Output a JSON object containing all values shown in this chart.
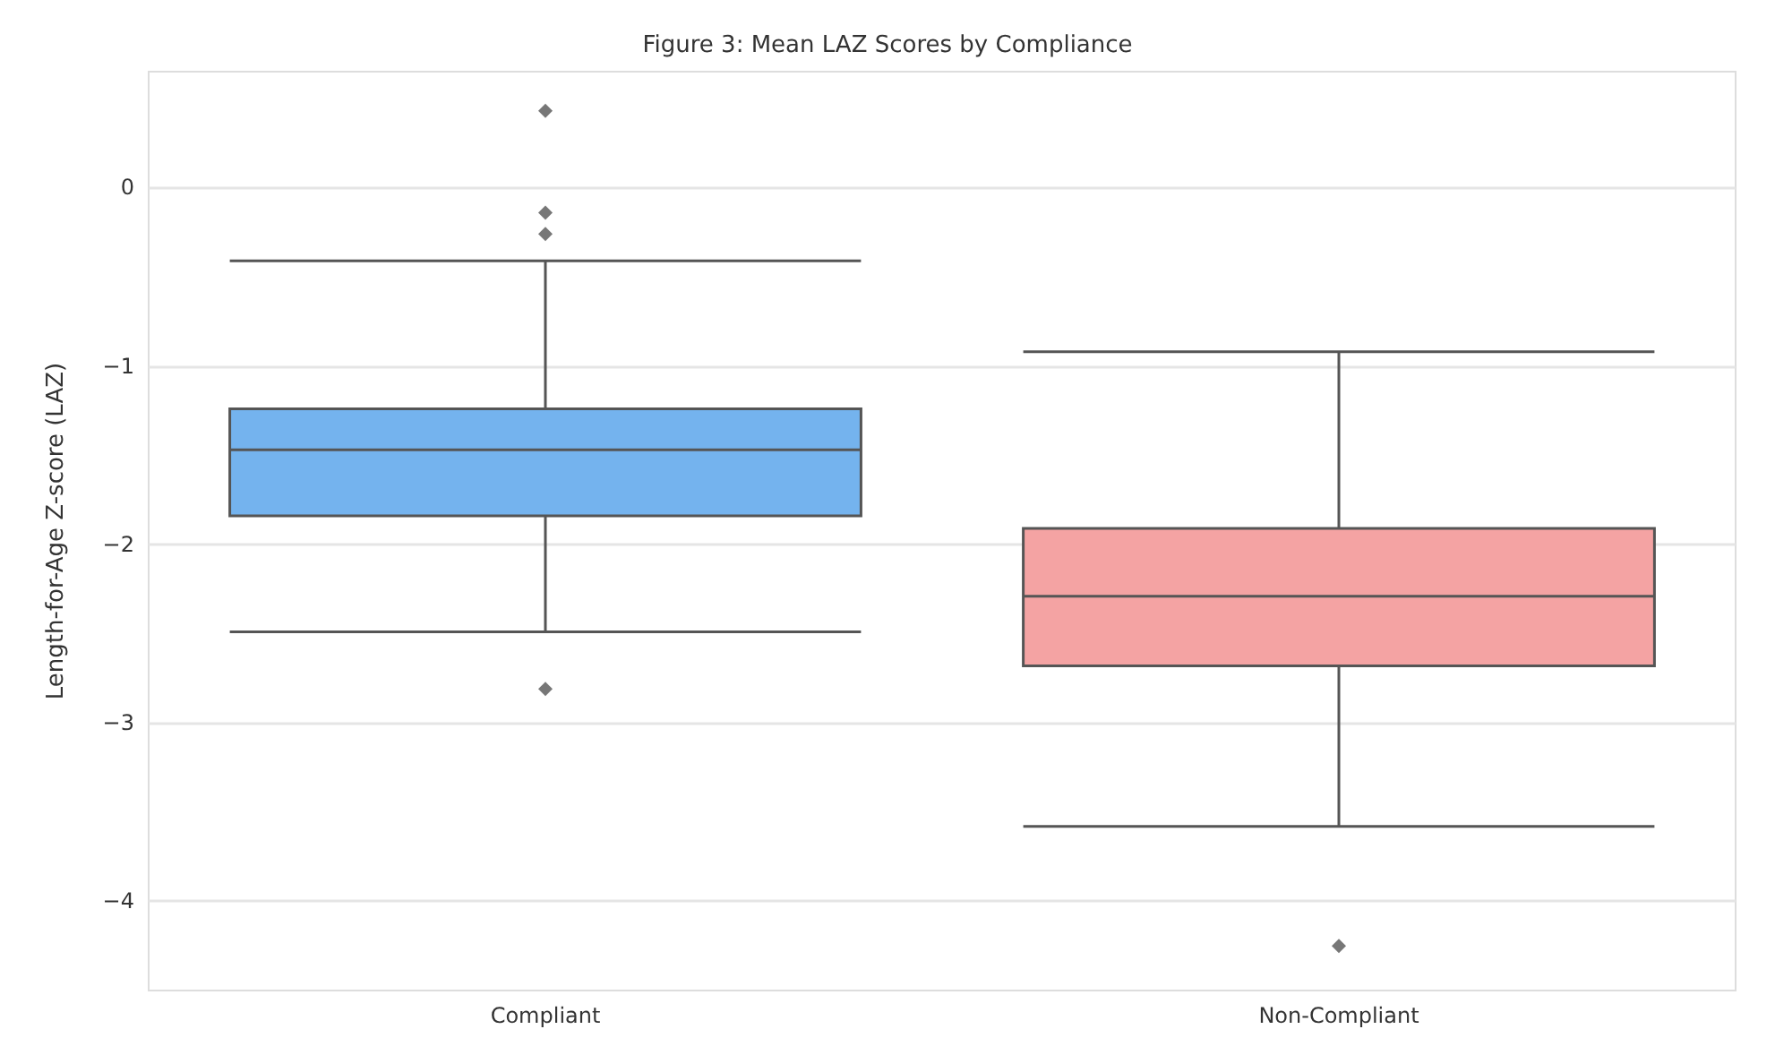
{
  "chart_data": {
    "type": "box",
    "title": "Figure 3: Mean LAZ Scores by Compliance",
    "ylabel": "Length-for-Age Z-score (LAZ)",
    "categories": [
      "Compliant",
      "Non-Compliant"
    ],
    "colors": [
      "#74b3ee",
      "#f4a3a3"
    ],
    "boxes": [
      {
        "low": -2.49,
        "q1": -1.84,
        "median": -1.47,
        "q3": -1.24,
        "high": -0.41,
        "outliers": [
          0.43,
          -0.14,
          -0.26,
          -2.81
        ]
      },
      {
        "low": -3.58,
        "q1": -2.68,
        "median": -2.29,
        "q3": -1.91,
        "high": -0.92,
        "outliers": [
          -4.25
        ]
      }
    ],
    "ylim": [
      -4.5,
      0.65
    ],
    "yticks": [
      {
        "value": 0,
        "label": "0"
      },
      {
        "value": -1,
        "label": "−1"
      },
      {
        "value": -2,
        "label": "−2"
      },
      {
        "value": -3,
        "label": "−3"
      },
      {
        "value": -4,
        "label": "−4"
      }
    ],
    "grid": "y",
    "marker": "diamond"
  }
}
